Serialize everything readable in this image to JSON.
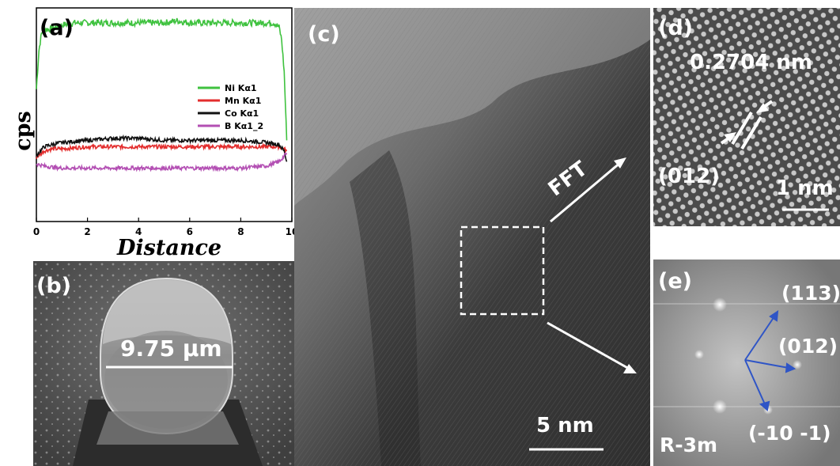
{
  "panel_a": {
    "label": "(a)",
    "chart_data": {
      "type": "line",
      "title": "",
      "xlabel": "Distance",
      "ylabel": "cps",
      "xlim": [
        0,
        10
      ],
      "x_ticks": [
        "0",
        "2",
        "4",
        "6",
        "8",
        "10"
      ],
      "grid": false,
      "legend_position": "center-right",
      "series": [
        {
          "name": "Ni Kα1",
          "color": "#3fc23f",
          "x": [
            0,
            0.1,
            0.2,
            0.3,
            0.5,
            0.8,
            1,
            1.5,
            2,
            2.5,
            3,
            3.5,
            4,
            4.5,
            5,
            5.5,
            6,
            6.5,
            7,
            7.5,
            8,
            8.5,
            9,
            9.3,
            9.5,
            9.6,
            9.7,
            9.8
          ],
          "y": [
            0.62,
            0.8,
            0.88,
            0.9,
            0.9,
            0.91,
            0.92,
            0.93,
            0.93,
            0.93,
            0.93,
            0.93,
            0.93,
            0.93,
            0.93,
            0.94,
            0.93,
            0.93,
            0.93,
            0.93,
            0.93,
            0.93,
            0.93,
            0.93,
            0.91,
            0.85,
            0.7,
            0.38
          ]
        },
        {
          "name": "Mn Kα1",
          "color": "#e32d2d",
          "x": [
            0,
            0.3,
            0.6,
            1,
            2,
            3,
            4,
            5,
            6,
            7,
            8,
            9,
            9.5,
            9.7,
            9.8
          ],
          "y": [
            0.3,
            0.33,
            0.34,
            0.34,
            0.35,
            0.35,
            0.35,
            0.35,
            0.35,
            0.35,
            0.35,
            0.35,
            0.35,
            0.34,
            0.33
          ]
        },
        {
          "name": "Co Kα1",
          "color": "#111111",
          "x": [
            0,
            0.3,
            0.6,
            1,
            2,
            3,
            4,
            5,
            6,
            7,
            8,
            9,
            9.5,
            9.7,
            9.8
          ],
          "y": [
            0.31,
            0.35,
            0.36,
            0.37,
            0.38,
            0.39,
            0.39,
            0.38,
            0.38,
            0.38,
            0.38,
            0.37,
            0.36,
            0.33,
            0.28
          ]
        },
        {
          "name": "B Kα1_2",
          "color": "#b34fb3",
          "x": [
            0,
            0.3,
            0.6,
            1,
            2,
            3,
            4,
            5,
            6,
            7,
            8,
            9,
            9.5,
            9.8
          ],
          "y": [
            0.27,
            0.26,
            0.255,
            0.25,
            0.25,
            0.25,
            0.25,
            0.25,
            0.25,
            0.25,
            0.25,
            0.26,
            0.28,
            0.32
          ]
        }
      ]
    }
  },
  "panel_b": {
    "label": "(b)",
    "scale_text": "9.75 μm"
  },
  "panel_c": {
    "label": "(c)",
    "fft_text": "FFT",
    "scale_text": "5 nm"
  },
  "panel_d": {
    "label": "(d)",
    "spacing_text": "0.2704 nm",
    "plane_text": "(012)",
    "scale_text": "1 nm"
  },
  "panel_e": {
    "label": "(e)",
    "spot1": "(113)",
    "spot2": "(012)",
    "spot3": "(-10 -1)",
    "space_group": "R-3m"
  }
}
